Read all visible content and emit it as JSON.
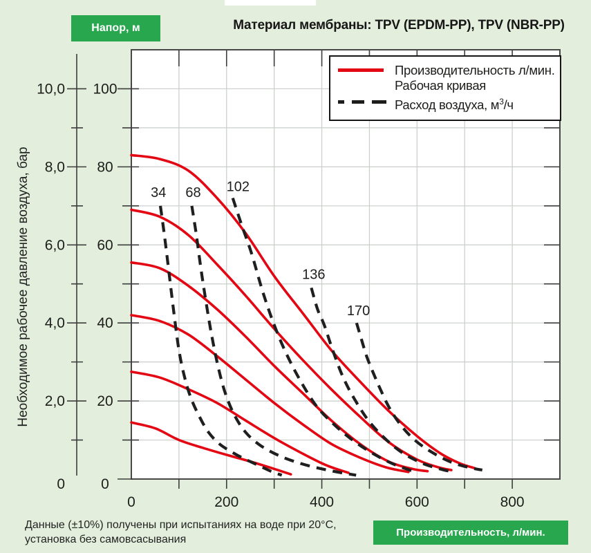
{
  "page": {
    "title": "Материал мембраны: TPV (EPDM-PP), TPV (NBR-PP)",
    "background": "#e3efdc"
  },
  "badges": {
    "head_axis": "Напор, м",
    "flow_axis": "Производительность, л/мин."
  },
  "axes": {
    "pressure_title": "Необходимое рабочее давление воздуха, бар"
  },
  "legend": {
    "working": {
      "line1": "Производительность л/мин.",
      "line2": "Рабочая кривая"
    },
    "air": {
      "pre": "Расход воздуха, м",
      "sup": "3",
      "post": "/ч"
    }
  },
  "footnote": {
    "line1": "Данные (±10%) получены при испытаниях на воде при 20°С,",
    "line2": "установка без самовсасывания"
  },
  "colors": {
    "badge_green": "#28a74e",
    "curve_red": "#e30613",
    "dash_black": "#1f1f1f",
    "grid_gray": "#c9cec9",
    "border_gray": "#474747",
    "background": "#e3efdc"
  },
  "chart_data": {
    "type": "line",
    "title": "Материал мембраны: TPV (EPDM-PP), TPV (NBR-PP)",
    "xlabel": "Производительность, л/мин.",
    "ylabel_left_outer": "Необходимое рабочее давление воздуха, бар",
    "ylabel_left_inner": "Напор, м",
    "x_axis": {
      "min": 0,
      "max": 900,
      "grid_step": 100,
      "tick_labels": [
        "0",
        "200",
        "400",
        "600",
        "800"
      ],
      "tick_values": [
        0,
        200,
        400,
        600,
        800
      ]
    },
    "head_axis": {
      "min": 0,
      "max": 110,
      "grid_step": 10,
      "tick_labels": [
        "100",
        "80",
        "60",
        "40",
        "20",
        "0"
      ],
      "tick_values": [
        100,
        80,
        60,
        40,
        20,
        0
      ]
    },
    "pressure_axis": {
      "tick_labels": [
        "10,0",
        "8,0",
        "6,0",
        "4,0",
        "2,0",
        "0"
      ],
      "tick_values_head_m": [
        100,
        80,
        60,
        40,
        20,
        0
      ]
    },
    "grid": true,
    "legend_position": "top-right",
    "working_curves": [
      {
        "points": [
          [
            0,
            83
          ],
          [
            60,
            82
          ],
          [
            120,
            79
          ],
          [
            180,
            72
          ],
          [
            240,
            63
          ],
          [
            300,
            52
          ],
          [
            360,
            42.5
          ],
          [
            420,
            33
          ],
          [
            480,
            25
          ],
          [
            540,
            17.5
          ],
          [
            600,
            11
          ],
          [
            650,
            6.5
          ],
          [
            690,
            4
          ],
          [
            721,
            2.8
          ]
        ]
      },
      {
        "points": [
          [
            0,
            69
          ],
          [
            60,
            67.2
          ],
          [
            120,
            62.5
          ],
          [
            180,
            55
          ],
          [
            240,
            47
          ],
          [
            300,
            38.5
          ],
          [
            360,
            30.5
          ],
          [
            420,
            23
          ],
          [
            480,
            16
          ],
          [
            540,
            9.5
          ],
          [
            600,
            5
          ],
          [
            645,
            3
          ],
          [
            672,
            2.3
          ]
        ]
      },
      {
        "points": [
          [
            0,
            55.5
          ],
          [
            60,
            54
          ],
          [
            120,
            49.5
          ],
          [
            180,
            43.5
          ],
          [
            240,
            36.5
          ],
          [
            300,
            29
          ],
          [
            360,
            22
          ],
          [
            420,
            15
          ],
          [
            480,
            9
          ],
          [
            540,
            4.5
          ],
          [
            590,
            2.6
          ],
          [
            622,
            2
          ]
        ]
      },
      {
        "points": [
          [
            0,
            42
          ],
          [
            60,
            40.5
          ],
          [
            120,
            37
          ],
          [
            180,
            31.5
          ],
          [
            240,
            25.5
          ],
          [
            300,
            19.5
          ],
          [
            360,
            14
          ],
          [
            420,
            9
          ],
          [
            480,
            5.5
          ],
          [
            535,
            3
          ],
          [
            582,
            1.8
          ]
        ]
      },
      {
        "points": [
          [
            0,
            27.5
          ],
          [
            60,
            26
          ],
          [
            120,
            23
          ],
          [
            180,
            19.5
          ],
          [
            240,
            15
          ],
          [
            300,
            10.5
          ],
          [
            360,
            6.5
          ],
          [
            410,
            3.5
          ],
          [
            456,
            1.6
          ]
        ]
      },
      {
        "points": [
          [
            0,
            14.5
          ],
          [
            50,
            13
          ],
          [
            100,
            10
          ],
          [
            150,
            8
          ],
          [
            200,
            6.2
          ],
          [
            250,
            4.5
          ],
          [
            300,
            2.6
          ],
          [
            335,
            1.2
          ]
        ]
      }
    ],
    "air_curves": [
      {
        "label": "34",
        "label_pos": [
          57,
          73.5
        ],
        "points": [
          [
            61,
            70
          ],
          [
            70,
            62
          ],
          [
            80,
            52
          ],
          [
            90,
            42
          ],
          [
            100,
            33
          ],
          [
            112,
            26
          ],
          [
            126,
            20.5
          ],
          [
            143,
            16
          ],
          [
            162,
            12
          ],
          [
            185,
            9
          ],
          [
            210,
            7
          ],
          [
            237,
            5.2
          ],
          [
            267,
            3.5
          ],
          [
            295,
            1.9
          ],
          [
            316,
            1
          ]
        ]
      },
      {
        "label": "68",
        "label_pos": [
          130,
          73.5
        ],
        "points": [
          [
            127,
            70
          ],
          [
            136,
            63
          ],
          [
            146,
            54
          ],
          [
            156,
            46
          ],
          [
            167,
            38
          ],
          [
            180,
            30
          ],
          [
            196,
            22.5
          ],
          [
            216,
            16.5
          ],
          [
            240,
            12
          ],
          [
            270,
            8.7
          ],
          [
            310,
            6
          ],
          [
            355,
            4
          ],
          [
            400,
            2.6
          ],
          [
            442,
            1.6
          ],
          [
            472,
            1
          ]
        ]
      },
      {
        "label": "102",
        "label_pos": [
          224,
          75
        ],
        "points": [
          [
            213,
            72
          ],
          [
            232,
            65
          ],
          [
            252,
            58
          ],
          [
            276,
            48
          ],
          [
            300,
            39.5
          ],
          [
            326,
            32
          ],
          [
            356,
            25
          ],
          [
            390,
            18.5
          ],
          [
            430,
            13.5
          ],
          [
            470,
            9.5
          ],
          [
            515,
            6
          ],
          [
            555,
            3.6
          ],
          [
            592,
            2
          ]
        ]
      },
      {
        "label": "136",
        "label_pos": [
          383,
          52.5
        ],
        "points": [
          [
            378,
            49
          ],
          [
            391,
            43.5
          ],
          [
            405,
            39.5
          ],
          [
            423,
            33
          ],
          [
            445,
            26
          ],
          [
            471,
            20
          ],
          [
            501,
            14.5
          ],
          [
            536,
            10
          ],
          [
            572,
            6.5
          ],
          [
            612,
            4
          ],
          [
            648,
            2.6
          ],
          [
            668,
            2
          ]
        ]
      },
      {
        "label": "170",
        "label_pos": [
          477,
          43.2
        ],
        "points": [
          [
            473,
            40
          ],
          [
            484,
            35.5
          ],
          [
            494,
            31.5
          ],
          [
            507,
            27.5
          ],
          [
            523,
            23
          ],
          [
            543,
            18
          ],
          [
            568,
            13.5
          ],
          [
            597,
            9.8
          ],
          [
            632,
            6.8
          ],
          [
            672,
            4.3
          ],
          [
            708,
            3
          ],
          [
            737,
            2.3
          ]
        ]
      }
    ]
  }
}
